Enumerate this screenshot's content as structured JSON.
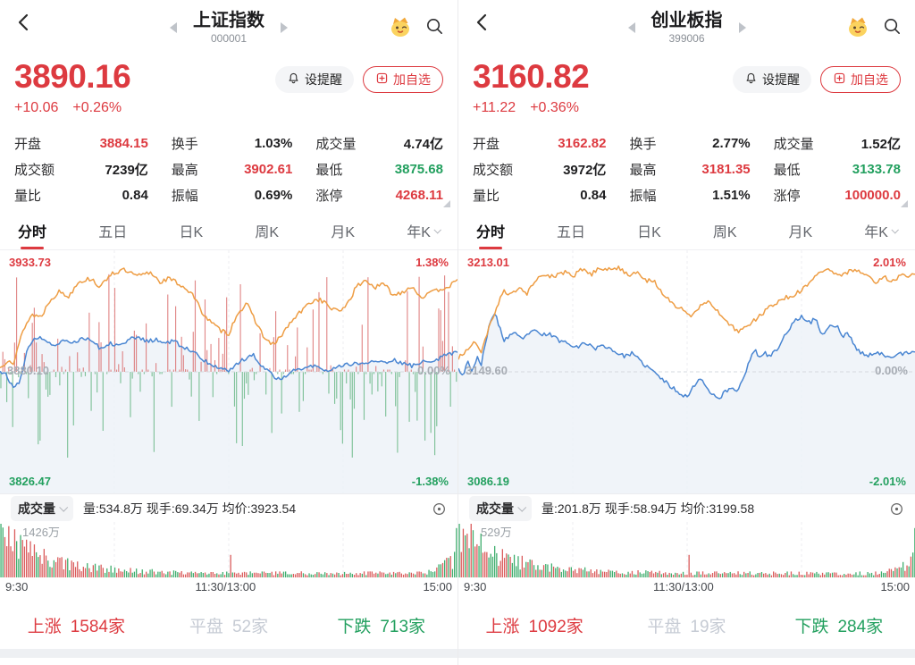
{
  "colors": {
    "red": "#dd3a40",
    "green": "#23a05f",
    "orange": "#ee9d44",
    "blue": "#4a86d2",
    "flat": "#c6cbd4",
    "bar_red": "#d96b6b",
    "bar_green": "#6cb98a",
    "fill_blue": "#edf2f8",
    "grid": "#ecedf1",
    "midline": "#d6d9df"
  },
  "panels": [
    {
      "header": {
        "title": "上证指数",
        "code": "000001"
      },
      "price": {
        "value": "3890.16",
        "change": "+10.06",
        "change_pct": "+0.26%"
      },
      "actions": {
        "alert_label": "设提醒",
        "add_label": "加自选"
      },
      "stats": [
        {
          "label": "开盘",
          "value": "3884.15",
          "color": "red"
        },
        {
          "label": "换手",
          "value": "1.03%",
          "color": "black"
        },
        {
          "label": "成交量",
          "value": "4.74亿",
          "color": "black"
        },
        {
          "label": "成交额",
          "value": "7239亿",
          "color": "black"
        },
        {
          "label": "最高",
          "value": "3902.61",
          "color": "red"
        },
        {
          "label": "最低",
          "value": "3875.68",
          "color": "green"
        },
        {
          "label": "量比",
          "value": "0.84",
          "color": "black"
        },
        {
          "label": "振幅",
          "value": "0.69%",
          "color": "black"
        },
        {
          "label": "涨停",
          "value": "4268.11",
          "color": "red"
        }
      ],
      "tabs": [
        {
          "label": "分时",
          "active": true,
          "caret": false
        },
        {
          "label": "五日",
          "active": false,
          "caret": false
        },
        {
          "label": "日K",
          "active": false,
          "caret": false
        },
        {
          "label": "周K",
          "active": false,
          "caret": false
        },
        {
          "label": "月K",
          "active": false,
          "caret": false
        },
        {
          "label": "年K",
          "active": false,
          "caret": true
        }
      ],
      "chart": {
        "high": "3933.73",
        "high_pct": "1.38%",
        "mid": "3880.10",
        "mid_pct": "0.00%",
        "low": "3826.47",
        "low_pct": "-1.38%",
        "range": 1.38,
        "flow_bars": true,
        "seed": 11,
        "orange": [
          [
            0,
            0.05
          ],
          [
            0.02,
            0.18
          ],
          [
            0.03,
            0.1
          ],
          [
            0.05,
            0.55
          ],
          [
            0.07,
            0.75
          ],
          [
            0.09,
            0.72
          ],
          [
            0.11,
            0.95
          ],
          [
            0.13,
            1.05
          ],
          [
            0.15,
            0.98
          ],
          [
            0.17,
            1.18
          ],
          [
            0.2,
            1.22
          ],
          [
            0.22,
            1.1
          ],
          [
            0.24,
            1.28
          ],
          [
            0.27,
            1.33
          ],
          [
            0.3,
            1.25
          ],
          [
            0.33,
            1.3
          ],
          [
            0.35,
            1.18
          ],
          [
            0.37,
            1.22
          ],
          [
            0.4,
            1.12
          ],
          [
            0.42,
            1.02
          ],
          [
            0.44,
            0.8
          ],
          [
            0.46,
            0.65
          ],
          [
            0.48,
            0.55
          ],
          [
            0.5,
            0.5
          ],
          [
            0.52,
            0.78
          ],
          [
            0.54,
            0.88
          ],
          [
            0.56,
            0.65
          ],
          [
            0.58,
            0.42
          ],
          [
            0.6,
            0.35
          ],
          [
            0.62,
            0.52
          ],
          [
            0.64,
            0.68
          ],
          [
            0.66,
            0.8
          ],
          [
            0.68,
            0.92
          ],
          [
            0.7,
            0.95
          ],
          [
            0.72,
            0.85
          ],
          [
            0.74,
            0.78
          ],
          [
            0.76,
            0.9
          ],
          [
            0.78,
            1.12
          ],
          [
            0.8,
            1.2
          ],
          [
            0.82,
            1.1
          ],
          [
            0.84,
            1.15
          ],
          [
            0.86,
            1.0
          ],
          [
            0.88,
            1.05
          ],
          [
            0.9,
            1.12
          ],
          [
            0.92,
            0.98
          ],
          [
            0.94,
            1.02
          ],
          [
            0.96,
            1.08
          ],
          [
            0.98,
            1.12
          ],
          [
            1,
            1.18
          ]
        ],
        "blue": [
          [
            0,
            0.02
          ],
          [
            0.015,
            -0.05
          ],
          [
            0.03,
            -0.22
          ],
          [
            0.045,
            -0.1
          ],
          [
            0.06,
            0.3
          ],
          [
            0.08,
            0.45
          ],
          [
            0.1,
            0.42
          ],
          [
            0.12,
            0.35
          ],
          [
            0.14,
            0.42
          ],
          [
            0.16,
            0.38
          ],
          [
            0.18,
            0.45
          ],
          [
            0.2,
            0.42
          ],
          [
            0.22,
            0.3
          ],
          [
            0.24,
            0.38
          ],
          [
            0.26,
            0.35
          ],
          [
            0.28,
            0.42
          ],
          [
            0.3,
            0.45
          ],
          [
            0.32,
            0.4
          ],
          [
            0.34,
            0.42
          ],
          [
            0.36,
            0.38
          ],
          [
            0.38,
            0.4
          ],
          [
            0.4,
            0.32
          ],
          [
            0.42,
            0.28
          ],
          [
            0.44,
            0.18
          ],
          [
            0.46,
            0.1
          ],
          [
            0.48,
            0.05
          ],
          [
            0.5,
            0.02
          ],
          [
            0.52,
            0.12
          ],
          [
            0.54,
            0.18
          ],
          [
            0.555,
            0.22
          ],
          [
            0.57,
            0.1
          ],
          [
            0.585,
            0.02
          ],
          [
            0.6,
            -0.06
          ],
          [
            0.615,
            -0.1
          ],
          [
            0.63,
            -0.02
          ],
          [
            0.65,
            0.06
          ],
          [
            0.66,
            0.02
          ],
          [
            0.68,
            0.08
          ],
          [
            0.7,
            0.05
          ],
          [
            0.72,
            0.02
          ],
          [
            0.74,
            0.06
          ],
          [
            0.76,
            0.1
          ],
          [
            0.78,
            0.12
          ],
          [
            0.8,
            0.1
          ],
          [
            0.82,
            0.14
          ],
          [
            0.84,
            0.12
          ],
          [
            0.86,
            0.16
          ],
          [
            0.88,
            0.1
          ],
          [
            0.9,
            0.08
          ],
          [
            0.92,
            0.12
          ],
          [
            0.94,
            0.15
          ],
          [
            0.96,
            0.18
          ],
          [
            0.98,
            0.24
          ],
          [
            1,
            0.26
          ]
        ]
      },
      "volume": {
        "indicator": "成交量",
        "info": "量:534.8万 现手:69.34万 均价:3923.54",
        "max_label": "1426万",
        "times": [
          "9:30",
          "11:30/13:00",
          "15:00"
        ],
        "seed": 33
      },
      "breadth": {
        "up_label": "上涨",
        "up_value": "1584家",
        "flat_label": "平盘",
        "flat_value": "52家",
        "down_label": "下跌",
        "down_value": "713家"
      }
    },
    {
      "header": {
        "title": "创业板指",
        "code": "399006"
      },
      "price": {
        "value": "3160.82",
        "change": "+11.22",
        "change_pct": "+0.36%"
      },
      "actions": {
        "alert_label": "设提醒",
        "add_label": "加自选"
      },
      "stats": [
        {
          "label": "开盘",
          "value": "3162.82",
          "color": "red"
        },
        {
          "label": "换手",
          "value": "2.77%",
          "color": "black"
        },
        {
          "label": "成交量",
          "value": "1.52亿",
          "color": "black"
        },
        {
          "label": "成交额",
          "value": "3972亿",
          "color": "black"
        },
        {
          "label": "最高",
          "value": "3181.35",
          "color": "red"
        },
        {
          "label": "最低",
          "value": "3133.78",
          "color": "green"
        },
        {
          "label": "量比",
          "value": "0.84",
          "color": "black"
        },
        {
          "label": "振幅",
          "value": "1.51%",
          "color": "black"
        },
        {
          "label": "涨停",
          "value": "100000.0",
          "color": "red"
        }
      ],
      "tabs": [
        {
          "label": "分时",
          "active": true,
          "caret": false
        },
        {
          "label": "五日",
          "active": false,
          "caret": false
        },
        {
          "label": "日K",
          "active": false,
          "caret": false
        },
        {
          "label": "周K",
          "active": false,
          "caret": false
        },
        {
          "label": "月K",
          "active": false,
          "caret": false
        },
        {
          "label": "年K",
          "active": false,
          "caret": true
        }
      ],
      "chart": {
        "high": "3213.01",
        "high_pct": "2.01%",
        "mid": "3149.60",
        "mid_pct": "0.00%",
        "low": "3086.19",
        "low_pct": "-2.01%",
        "range": 2.01,
        "flow_bars": false,
        "seed": 22,
        "orange": [
          [
            0,
            0.25
          ],
          [
            0.02,
            0.45
          ],
          [
            0.035,
            0.55
          ],
          [
            0.05,
            0.4
          ],
          [
            0.07,
            0.9
          ],
          [
            0.09,
            1.35
          ],
          [
            0.1,
            1.55
          ],
          [
            0.115,
            1.45
          ],
          [
            0.13,
            1.6
          ],
          [
            0.15,
            1.5
          ],
          [
            0.17,
            1.75
          ],
          [
            0.19,
            1.85
          ],
          [
            0.21,
            1.8
          ],
          [
            0.23,
            1.9
          ],
          [
            0.25,
            1.82
          ],
          [
            0.27,
            1.95
          ],
          [
            0.29,
            1.85
          ],
          [
            0.31,
            1.98
          ],
          [
            0.33,
            1.95
          ],
          [
            0.35,
            2.0
          ],
          [
            0.37,
            1.85
          ],
          [
            0.39,
            1.9
          ],
          [
            0.41,
            1.75
          ],
          [
            0.43,
            1.7
          ],
          [
            0.45,
            1.45
          ],
          [
            0.47,
            1.3
          ],
          [
            0.49,
            1.18
          ],
          [
            0.51,
            1.05
          ],
          [
            0.53,
            1.25
          ],
          [
            0.55,
            1.35
          ],
          [
            0.57,
            1.1
          ],
          [
            0.59,
            0.9
          ],
          [
            0.61,
            0.78
          ],
          [
            0.63,
            0.85
          ],
          [
            0.65,
            1.0
          ],
          [
            0.67,
            1.15
          ],
          [
            0.69,
            1.3
          ],
          [
            0.71,
            1.4
          ],
          [
            0.73,
            1.45
          ],
          [
            0.75,
            1.55
          ],
          [
            0.77,
            1.7
          ],
          [
            0.79,
            1.9
          ],
          [
            0.81,
            1.95
          ],
          [
            0.83,
            1.85
          ],
          [
            0.85,
            1.9
          ],
          [
            0.87,
            1.95
          ],
          [
            0.89,
            1.88
          ],
          [
            0.91,
            1.7
          ],
          [
            0.93,
            1.8
          ],
          [
            0.95,
            1.75
          ],
          [
            0.97,
            1.82
          ],
          [
            1,
            1.88
          ]
        ],
        "blue": [
          [
            0,
            0.1
          ],
          [
            0.01,
            -0.1
          ],
          [
            0.02,
            0.25
          ],
          [
            0.03,
            -0.05
          ],
          [
            0.04,
            0.3
          ],
          [
            0.05,
            0.15
          ],
          [
            0.06,
            0.55
          ],
          [
            0.07,
            1.0
          ],
          [
            0.08,
            1.1
          ],
          [
            0.09,
            0.85
          ],
          [
            0.1,
            0.6
          ],
          [
            0.12,
            0.75
          ],
          [
            0.14,
            0.6
          ],
          [
            0.16,
            0.8
          ],
          [
            0.18,
            0.7
          ],
          [
            0.2,
            0.72
          ],
          [
            0.22,
            0.6
          ],
          [
            0.24,
            0.55
          ],
          [
            0.26,
            0.48
          ],
          [
            0.28,
            0.55
          ],
          [
            0.3,
            0.45
          ],
          [
            0.32,
            0.5
          ],
          [
            0.34,
            0.4
          ],
          [
            0.36,
            0.3
          ],
          [
            0.38,
            0.35
          ],
          [
            0.4,
            0.18
          ],
          [
            0.42,
            0.05
          ],
          [
            0.44,
            -0.1
          ],
          [
            0.46,
            -0.25
          ],
          [
            0.48,
            -0.38
          ],
          [
            0.5,
            -0.48
          ],
          [
            0.52,
            -0.2
          ],
          [
            0.53,
            -0.1
          ],
          [
            0.54,
            -0.28
          ],
          [
            0.56,
            -0.45
          ],
          [
            0.57,
            -0.52
          ],
          [
            0.58,
            -0.4
          ],
          [
            0.6,
            -0.3
          ],
          [
            0.61,
            -0.38
          ],
          [
            0.62,
            -0.15
          ],
          [
            0.63,
            0.05
          ],
          [
            0.64,
            0.3
          ],
          [
            0.65,
            0.4
          ],
          [
            0.66,
            0.25
          ],
          [
            0.67,
            0.35
          ],
          [
            0.68,
            0.3
          ],
          [
            0.7,
            0.45
          ],
          [
            0.72,
            0.8
          ],
          [
            0.74,
            1.0
          ],
          [
            0.75,
            1.05
          ],
          [
            0.77,
            0.95
          ],
          [
            0.78,
            1.02
          ],
          [
            0.79,
            0.8
          ],
          [
            0.8,
            0.7
          ],
          [
            0.81,
            0.9
          ],
          [
            0.83,
            0.85
          ],
          [
            0.84,
            0.65
          ],
          [
            0.85,
            0.75
          ],
          [
            0.87,
            0.45
          ],
          [
            0.88,
            0.35
          ],
          [
            0.9,
            0.32
          ],
          [
            0.92,
            0.35
          ],
          [
            0.94,
            0.3
          ],
          [
            0.96,
            0.33
          ],
          [
            0.98,
            0.35
          ],
          [
            1,
            0.36
          ]
        ]
      },
      "volume": {
        "indicator": "成交量",
        "info": "量:201.8万 现手:58.94万 均价:3199.58",
        "max_label": "529万",
        "times": [
          "9:30",
          "11:30/13:00",
          "15:00"
        ],
        "seed": 44
      },
      "breadth": {
        "up_label": "上涨",
        "up_value": "1092家",
        "flat_label": "平盘",
        "flat_value": "19家",
        "down_label": "下跌",
        "down_value": "284家"
      }
    }
  ]
}
